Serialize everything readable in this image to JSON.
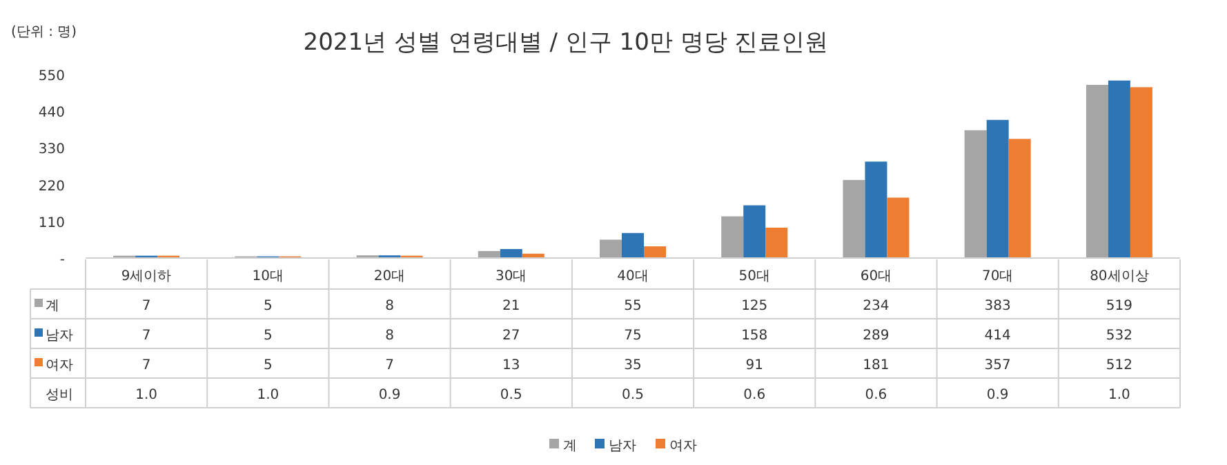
{
  "chart_data": {
    "type": "bar",
    "title": "2021년 성별 연령대별 / 인구 10만 명당 진료인원",
    "categories": [
      "9세이하",
      "10대",
      "20대",
      "30대",
      "40대",
      "50대",
      "60대",
      "70대",
      "80세이상"
    ],
    "series": [
      {
        "name": "계",
        "color": "#a5a5a5",
        "values": [
          7,
          5,
          8,
          21,
          55,
          125,
          234,
          383,
          519
        ]
      },
      {
        "name": "남자",
        "color": "#2e75b6",
        "values": [
          7,
          5,
          8,
          27,
          75,
          158,
          289,
          414,
          532
        ]
      },
      {
        "name": "여자",
        "color": "#ed7d31",
        "values": [
          7,
          5,
          7,
          13,
          35,
          91,
          181,
          357,
          512
        ]
      }
    ],
    "ylim": [
      0,
      550
    ],
    "yticks": [
      {
        "value": 0,
        "label": "-"
      },
      110,
      220,
      330,
      440,
      550
    ],
    "data_labels": true,
    "legend": "bottom",
    "annotations": [
      "(단위 : 명)",
      "성비",
      "1.0",
      "1.0",
      "0.9",
      "0.5",
      "0.5",
      "0.6",
      "0.6",
      "0.9",
      "1.0"
    ]
  }
}
